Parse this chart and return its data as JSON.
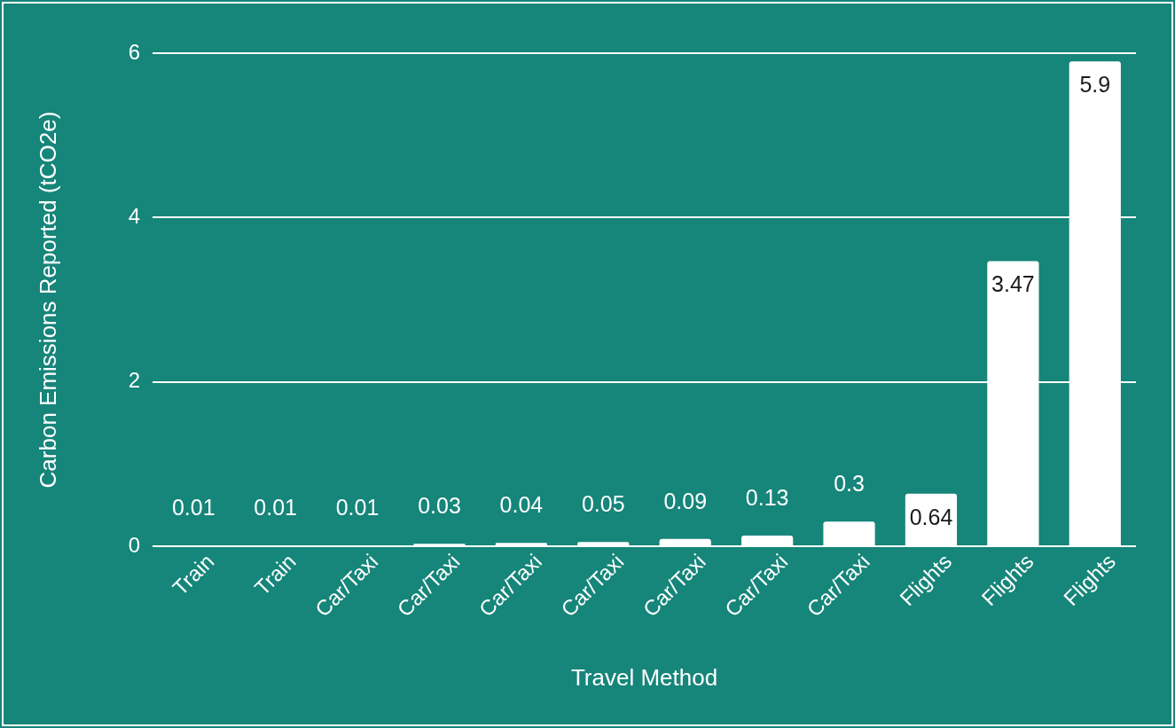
{
  "chart_data": {
    "type": "bar",
    "xlabel": "Travel Method",
    "ylabel": "Carbon Emissions Reported (tCO2e)",
    "categories": [
      "Train",
      "Train",
      "Car/Taxi",
      "Car/Taxi",
      "Car/Taxi",
      "Car/Taxi",
      "Car/Taxi",
      "Car/Taxi",
      "Car/Taxi",
      "Flights",
      "Flights",
      "Flights"
    ],
    "values": [
      0.01,
      0.01,
      0.01,
      0.03,
      0.04,
      0.05,
      0.09,
      0.13,
      0.3,
      0.64,
      3.47,
      5.9
    ],
    "color": "#ffffff",
    "ylim": [
      0,
      6
    ],
    "yticks": [
      0,
      2,
      4,
      6
    ],
    "grid": "y",
    "data_labels": true
  }
}
